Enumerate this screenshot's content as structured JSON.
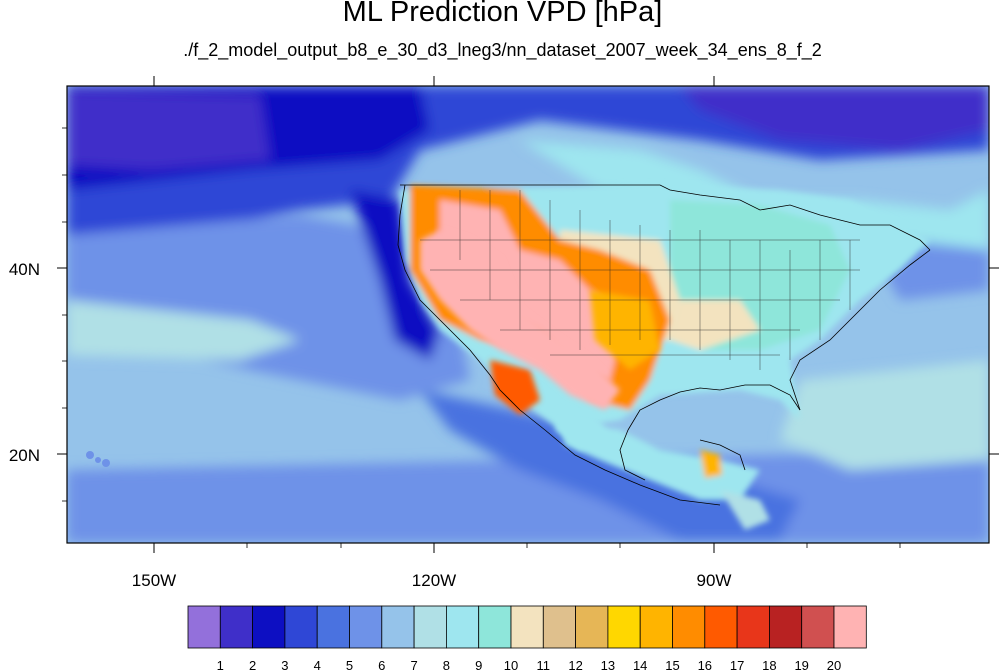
{
  "title": "ML Prediction VPD [hPa]",
  "subtitle": "./f_2_model_output_b8_e_30_d3_lneg3/nn_dataset_2007_week_34_ens_8_f_2",
  "axes": {
    "x_ticks": [
      "150W",
      "120W",
      "90W"
    ],
    "y_ticks": [
      "40N",
      "20N"
    ]
  },
  "colorbar": {
    "labels": [
      "1",
      "2",
      "3",
      "4",
      "5",
      "6",
      "7",
      "8",
      "9",
      "10",
      "11",
      "12",
      "13",
      "14",
      "15",
      "16",
      "17",
      "18",
      "19",
      "20"
    ],
    "colors": [
      "#9370db",
      "#3f2fc9",
      "#0d0fc2",
      "#2f47d6",
      "#4a72e0",
      "#6e92e8",
      "#95c3ea",
      "#b0e0e6",
      "#9ee6ef",
      "#8ee6da",
      "#f3e3bf",
      "#dfc08d",
      "#e6b656",
      "#ffd700",
      "#ffb400",
      "#ff8c00",
      "#ff5a00",
      "#e8361a",
      "#b82222",
      "#d05050",
      "#ffb3b3"
    ]
  },
  "map": {
    "lon_range": [
      -160,
      -61
    ],
    "lat_range": [
      10,
      59
    ],
    "palette": {
      "ocean_deep": "#0d0fc2",
      "ocean": "#2f47d6",
      "ocean_mid": "#4a72e0",
      "ocean_light": "#95c3ea",
      "land_cool": "#9ee6ef",
      "land_mild": "#8ee6da",
      "plains": "#f3e3bf",
      "hot": "#ff8c00",
      "very_hot": "#ffb3b3"
    }
  }
}
